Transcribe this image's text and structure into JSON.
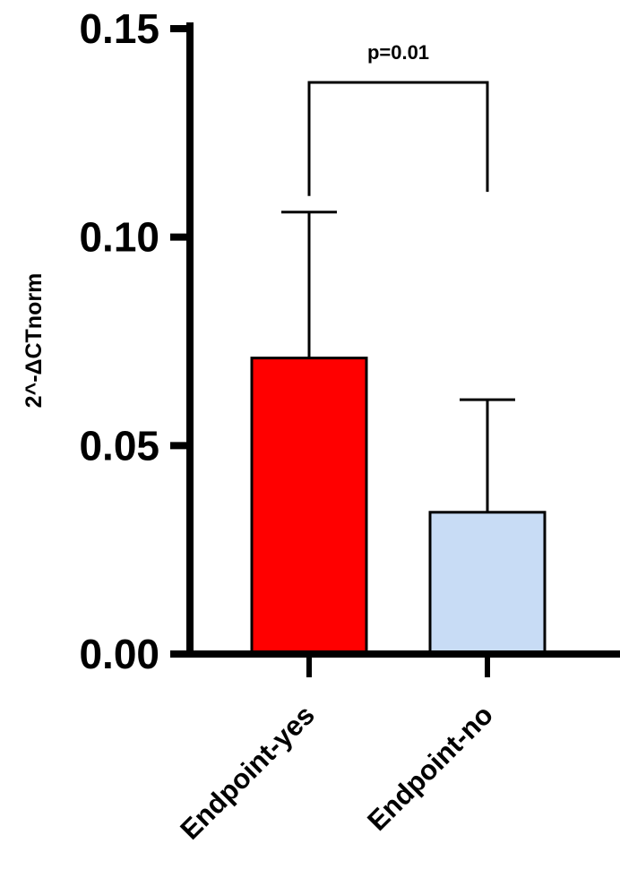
{
  "chart_data": {
    "type": "bar",
    "categories": [
      "Endpoint-yes",
      "Endpoint-no"
    ],
    "values": [
      0.071,
      0.034
    ],
    "error_upper": [
      0.106,
      0.061
    ],
    "ylabel": "2^-ΔCTnorm",
    "xlabel": "",
    "title": "",
    "ylim": [
      0,
      0.15
    ],
    "yticks": [
      "0.00",
      "0.05",
      "0.10",
      "0.15"
    ],
    "bar_colors": [
      "#ff0000",
      "#c8dcf5"
    ],
    "bar_edge_color": "#000000",
    "grid": false,
    "annotation": {
      "text": "p=0.01",
      "between": [
        "Endpoint-yes",
        "Endpoint-no"
      ]
    }
  }
}
